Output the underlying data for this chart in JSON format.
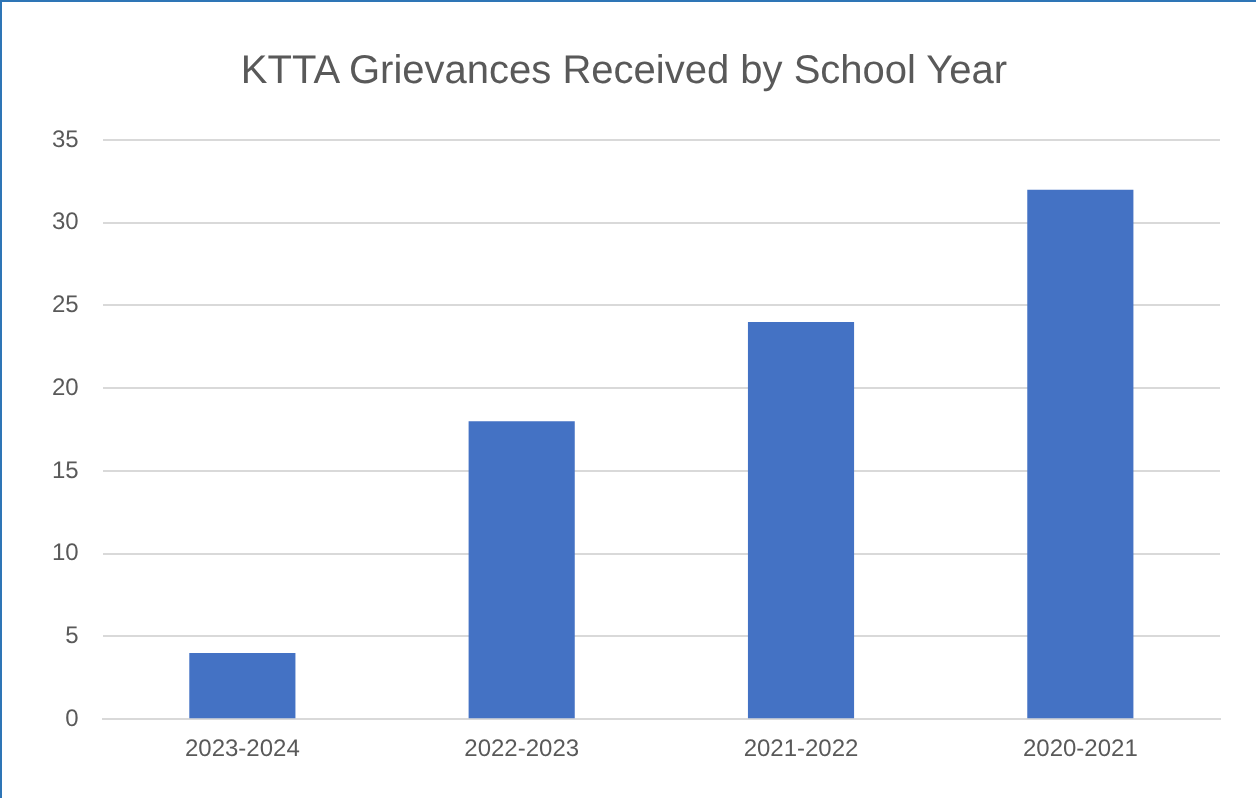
{
  "chart_data": {
    "type": "bar",
    "title": "KTTA Grievances Received by School Year",
    "categories": [
      "2023-2024",
      "2022-2023",
      "2021-2022",
      "2020-2021"
    ],
    "values": [
      4,
      18,
      24,
      32
    ],
    "color": "#4472c4",
    "ylim": [
      0,
      35
    ],
    "yticks": [
      0,
      5,
      10,
      15,
      20,
      25,
      30,
      35
    ],
    "grid": "y",
    "legend": false
  }
}
